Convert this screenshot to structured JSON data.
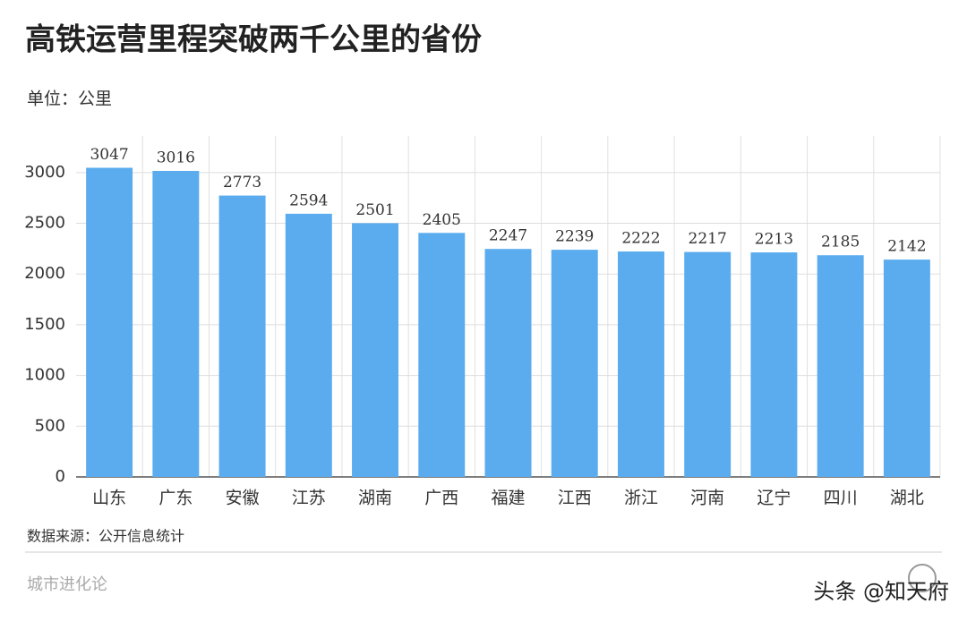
{
  "chart_data": {
    "type": "bar",
    "title": "高铁运营里程突破两千公里的省份",
    "subtitle": "单位：公里",
    "categories": [
      "山东",
      "广东",
      "安徽",
      "江苏",
      "湖南",
      "广西",
      "福建",
      "江西",
      "浙江",
      "河南",
      "辽宁",
      "四川",
      "湖北"
    ],
    "values": [
      3047,
      3016,
      2773,
      2594,
      2501,
      2405,
      2247,
      2239,
      2222,
      2217,
      2213,
      2185,
      2142
    ],
    "color": "#5aacee",
    "ylim": [
      0,
      3360
    ],
    "yticks": [
      0,
      500,
      1000,
      1500,
      2000,
      2500,
      3000
    ],
    "grid": true,
    "source": "数据来源：公开信息统计",
    "brand": "城市进化论",
    "watermark": "头条 @知天府"
  }
}
